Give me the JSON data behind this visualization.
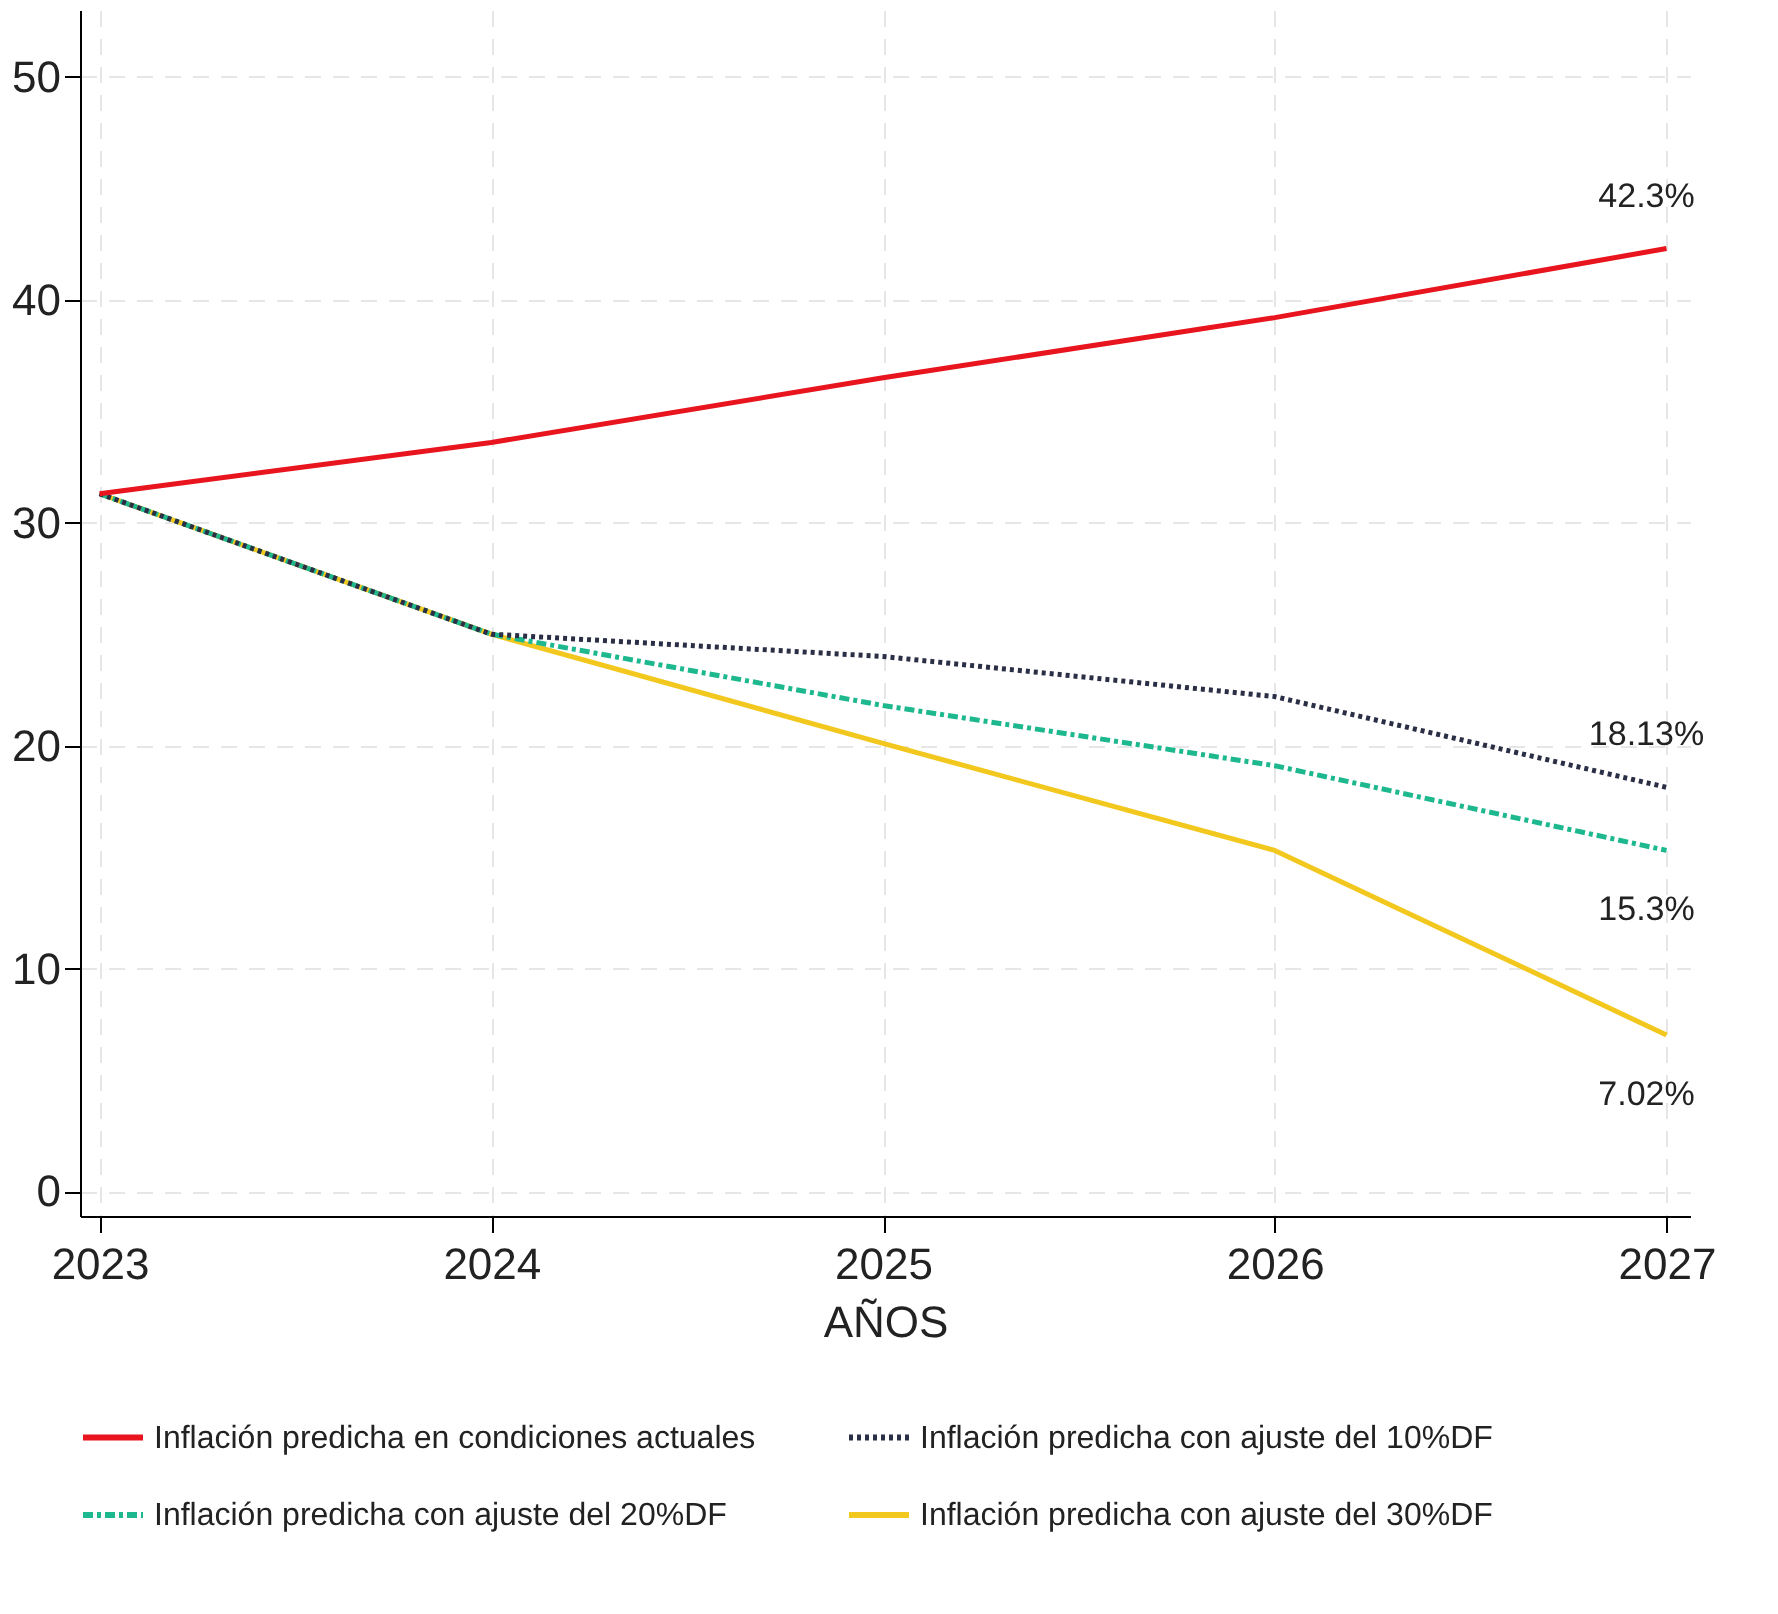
{
  "chart_data": {
    "type": "line",
    "xlabel": "AÑOS",
    "x": [
      2023,
      2024,
      2025,
      2026,
      2027
    ],
    "series": [
      {
        "name": "Inflación predicha en condiciones actuales",
        "color": "#e8141e",
        "line_style": "solid",
        "values": [
          31.3,
          33.6,
          36.5,
          39.2,
          42.3
        ],
        "value_labels": [
          null,
          null,
          null,
          null,
          "42.3%"
        ]
      },
      {
        "name": "Inflación predicha con ajuste del 10%DF",
        "color": "#2b2f45",
        "line_style": "dotted",
        "values": [
          31.3,
          25.0,
          24.0,
          22.2,
          18.13
        ],
        "value_labels": [
          null,
          null,
          null,
          null,
          "18.13%"
        ]
      },
      {
        "name": "Inflación predicha con ajuste del 20%DF",
        "color": "#1db88e",
        "line_style": "dashed",
        "values": [
          31.3,
          25.0,
          21.8,
          19.1,
          15.3
        ],
        "value_labels": [
          null,
          null,
          null,
          null,
          "15.3%"
        ]
      },
      {
        "name": "Inflación predicha con ajuste del 30%DF",
        "color": "#f2c81e",
        "line_style": "solid",
        "values": [
          31.3,
          25.0,
          20.1,
          15.3,
          7.02
        ],
        "value_labels": [
          null,
          null,
          null,
          null,
          "7.02%"
        ]
      }
    ],
    "xlim": [
      2022.95,
      2027.06
    ],
    "xticks": [
      2023,
      2024,
      2025,
      2026,
      2027
    ],
    "ylim": [
      -1.1,
      53
    ],
    "yticks": [
      0,
      10,
      20,
      30,
      40,
      50
    ],
    "grid": true,
    "legend": "bottom",
    "marker": "none"
  }
}
